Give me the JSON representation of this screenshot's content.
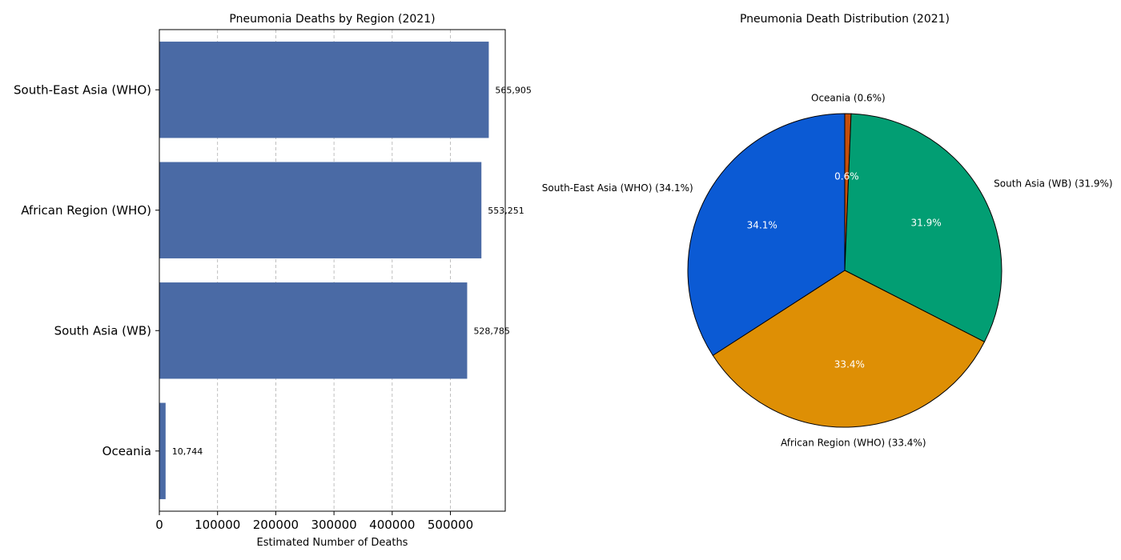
{
  "chart_data": [
    {
      "type": "bar",
      "orientation": "horizontal",
      "title": "Pneumonia Deaths by Region (2021)",
      "xlabel": "Estimated Number of Deaths",
      "ylabel": "",
      "categories": [
        "South-East Asia (WHO)",
        "African Region (WHO)",
        "South Asia (WB)",
        "Oceania"
      ],
      "values": [
        565905,
        553251,
        528785,
        10744
      ],
      "data_labels": [
        "565,905",
        "553,251",
        "528,785",
        "10,744"
      ],
      "xticks": [
        0,
        100000,
        200000,
        300000,
        400000,
        500000
      ],
      "xtick_labels": [
        "0",
        "100000",
        "200000",
        "300000",
        "400000",
        "500000"
      ],
      "xlim": [
        0,
        594200
      ],
      "grid": "x-dashed",
      "bar_color": "#4a6aa5"
    },
    {
      "type": "pie",
      "title": "Pneumonia Death Distribution (2021)",
      "start_angle": 90,
      "direction": "clockwise",
      "slices": [
        {
          "label": "Oceania (0.6%)",
          "value": 10744,
          "pct": "0.6%",
          "color": "#c54e0a"
        },
        {
          "label": "South Asia (WB) (31.9%)",
          "value": 528785,
          "pct": "31.9%",
          "color": "#029e73"
        },
        {
          "label": "African Region (WHO) (33.4%)",
          "value": 553251,
          "pct": "33.4%",
          "color": "#de8f05"
        },
        {
          "label": "South-East Asia (WHO) (34.1%)",
          "value": 565905,
          "pct": "34.1%",
          "color": "#0b5ad4"
        }
      ],
      "edge_color": "#000000"
    }
  ]
}
